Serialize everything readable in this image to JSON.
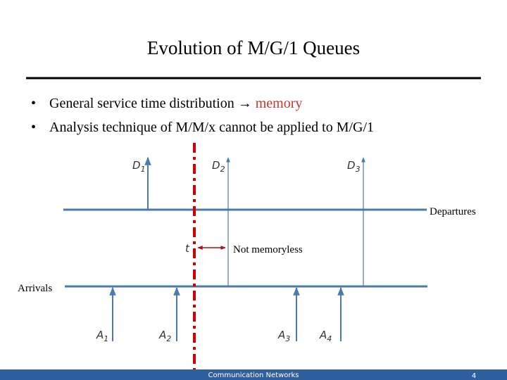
{
  "header": {
    "title": "Evolution of M/G/1 Queues"
  },
  "bullets": [
    {
      "text": "General service time distribution →",
      "highlight": "memory"
    },
    {
      "text": "Analysis technique of M/M/x cannot be applied to M/G/1"
    }
  ],
  "diagram": {
    "departures_label": "Departures",
    "arrivals_label": "Arrivals",
    "time_label": "t",
    "interval_label": "Not memoryless",
    "departures": [
      {
        "base": "D",
        "sub": "1"
      },
      {
        "base": "D",
        "sub": "2"
      },
      {
        "base": "D",
        "sub": "3"
      }
    ],
    "arrivals": [
      {
        "base": "A",
        "sub": "1"
      },
      {
        "base": "A",
        "sub": "2"
      },
      {
        "base": "A",
        "sub": "3"
      },
      {
        "base": "A",
        "sub": "4"
      }
    ]
  },
  "footer": {
    "course": "Communication Networks",
    "page": "4"
  }
}
